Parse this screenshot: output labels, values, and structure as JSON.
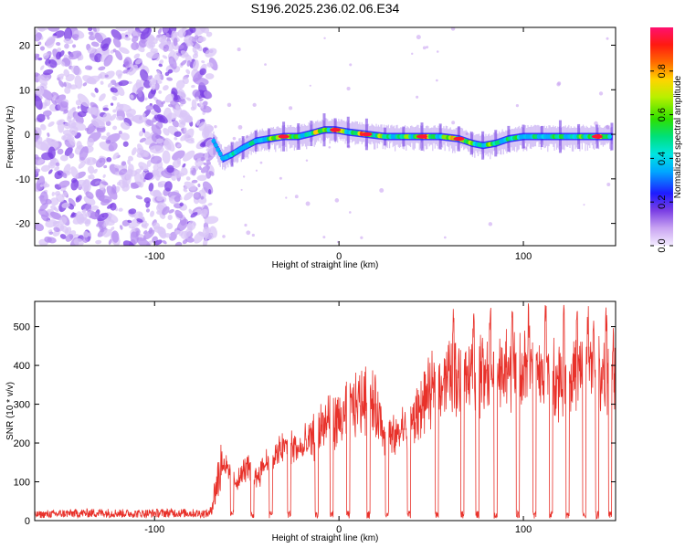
{
  "title": "S196.2025.236.02.06.E34",
  "colors": {
    "snr_line": "#e8312a",
    "axis": "#000000",
    "spectrogram_noise": "#9b6be0"
  },
  "chart_data": [
    {
      "type": "heatmap",
      "title": "S196.2025.236.02.06.E34",
      "xlabel": "Height of straight line (km)",
      "ylabel": "Frequency (Hz)",
      "xlim": [
        -165,
        150
      ],
      "ylim": [
        -25,
        24
      ],
      "xticks": [
        -100,
        0,
        100
      ],
      "yticks": [
        -20,
        -10,
        0,
        10,
        20
      ],
      "colorbar": {
        "label": "Normalized spectral amplitude",
        "range": [
          0,
          1
        ],
        "ticks": [
          "0.0",
          "0.2",
          "0.4",
          "0.6",
          "0.8"
        ],
        "tick_values": [
          0.0,
          0.2,
          0.4,
          0.6,
          0.8
        ]
      },
      "noise_region_x": [
        -165,
        -68
      ],
      "ridge": {
        "x": [
          -68,
          -63,
          -58,
          -52,
          -45,
          -38,
          -30,
          -22,
          -15,
          -8,
          -2,
          5,
          15,
          25,
          35,
          45,
          55,
          65,
          72,
          78,
          85,
          92,
          100,
          110,
          120,
          130,
          140,
          148
        ],
        "freq": [
          -1.5,
          -5.5,
          -4.5,
          -3.0,
          -1.5,
          -1.0,
          -0.5,
          -0.5,
          0.2,
          1.0,
          1.0,
          0.5,
          0.0,
          -0.5,
          -0.5,
          -0.5,
          -0.5,
          -1.0,
          -2.0,
          -2.5,
          -2.0,
          -1.0,
          -0.5,
          -0.5,
          -0.5,
          -0.5,
          -0.5,
          -0.5
        ],
        "amp": [
          0.3,
          0.35,
          0.5,
          0.45,
          0.5,
          0.6,
          0.9,
          0.55,
          0.7,
          0.8,
          0.95,
          0.6,
          0.9,
          0.6,
          0.6,
          0.9,
          0.6,
          0.95,
          0.6,
          0.7,
          0.6,
          0.6,
          0.5,
          0.5,
          0.6,
          0.55,
          0.9,
          0.5
        ]
      }
    },
    {
      "type": "line",
      "xlabel": "Height of straight line (km)",
      "ylabel": "SNR (10 * v/v)",
      "xlim": [
        -165,
        150
      ],
      "ylim": [
        0,
        565
      ],
      "xticks": [
        -100,
        0,
        100
      ],
      "yticks": [
        0,
        100,
        200,
        300,
        400,
        500
      ],
      "series": [
        {
          "name": "SNR",
          "x": [
            -165,
            -150,
            -130,
            -110,
            -90,
            -70,
            -63,
            -60,
            -55,
            -50,
            -45,
            -40,
            -35,
            -30,
            -25,
            -20,
            -15,
            -10,
            -5,
            0,
            5,
            10,
            15,
            20,
            25,
            30,
            35,
            40,
            45,
            50,
            55,
            60,
            70,
            80,
            90,
            100,
            110,
            120,
            130,
            140,
            150
          ],
          "values": [
            15,
            18,
            20,
            18,
            20,
            18,
            160,
            120,
            100,
            140,
            110,
            150,
            160,
            190,
            190,
            180,
            210,
            240,
            260,
            250,
            290,
            300,
            320,
            290,
            220,
            210,
            240,
            250,
            300,
            330,
            360,
            370,
            380,
            370,
            380,
            390,
            380,
            370,
            380,
            380,
            390
          ]
        }
      ],
      "dropouts_x": [
        -58,
        -47,
        -37,
        -27,
        -12,
        -4,
        5,
        16,
        26,
        38,
        53,
        67,
        75,
        85,
        97,
        106,
        115,
        124,
        133,
        140,
        147
      ],
      "spikes_x": [
        62,
        73,
        82,
        94,
        103,
        112,
        122,
        129,
        135,
        138,
        145
      ]
    }
  ]
}
